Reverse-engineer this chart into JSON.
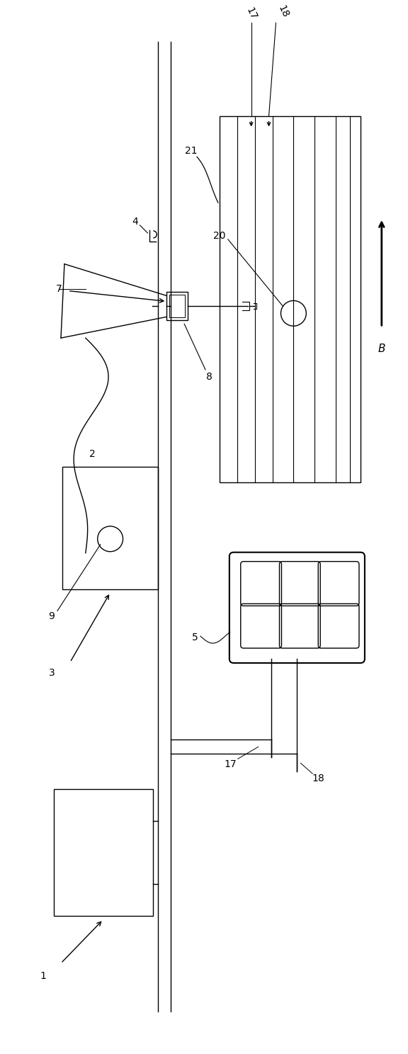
{
  "fig_width": 5.76,
  "fig_height": 14.88,
  "bg_color": "#ffffff",
  "lc": "#000000",
  "lw": 1.0
}
